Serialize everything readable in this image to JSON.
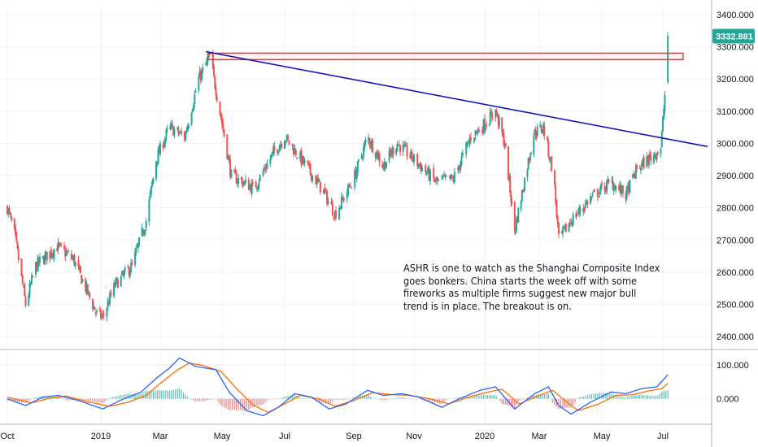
{
  "colors": {
    "up": "#26a69a",
    "down": "#ef5350",
    "grid": "#f0f3fa",
    "axis": "#e0e3eb",
    "trendline": "#1616b8",
    "resistance_box": "#e8382b",
    "macd": "#2962ff",
    "signal": "#ff6d00",
    "price_tag": "#26a69a"
  },
  "annotation": "ASHR is one to watch as the Shanghai Composite Index\ngoes bonkers. China starts the week off with some\nfireworks as multiple firms suggest new major bull\ntrend is in place. The breakout is on.",
  "chart_data": [
    {
      "type": "candlestick",
      "title": "",
      "x_tick_labels": [
        "Oct",
        "2019",
        "Mar",
        "May",
        "Jul",
        "Sep",
        "Nov",
        "2020",
        "Mar",
        "May",
        "Jul"
      ],
      "y_tick_labels": [
        "3400.000",
        "3300.000",
        "3200.000",
        "3100.000",
        "3000.000",
        "2900.000",
        "2800.000",
        "2700.000",
        "2600.000",
        "2500.000",
        "2400.000"
      ],
      "ylim": [
        2365,
        3430
      ],
      "last_price": "3332.881",
      "x_range": [
        "2018-10-01",
        "2020-07-31"
      ],
      "grid": true,
      "series_path": [
        [
          "2018-10-01",
          2800
        ],
        [
          "2018-10-08",
          2720
        ],
        [
          "2018-10-19",
          2500
        ],
        [
          "2018-10-29",
          2620
        ],
        [
          "2018-11-19",
          2680
        ],
        [
          "2018-12-05",
          2640
        ],
        [
          "2018-12-28",
          2470
        ],
        [
          "2019-01-03",
          2460
        ],
        [
          "2019-01-15",
          2560
        ],
        [
          "2019-02-01",
          2620
        ],
        [
          "2019-02-15",
          2760
        ],
        [
          "2019-02-25",
          2950
        ],
        [
          "2019-03-10",
          3050
        ],
        [
          "2019-03-25",
          3020
        ],
        [
          "2019-04-08",
          3200
        ],
        [
          "2019-04-19",
          3270
        ],
        [
          "2019-04-30",
          3080
        ],
        [
          "2019-05-10",
          2900
        ],
        [
          "2019-06-01",
          2860
        ],
        [
          "2019-06-20",
          2970
        ],
        [
          "2019-07-01",
          3020
        ],
        [
          "2019-07-20",
          2930
        ],
        [
          "2019-08-05",
          2850
        ],
        [
          "2019-08-15",
          2780
        ],
        [
          "2019-09-01",
          2890
        ],
        [
          "2019-09-15",
          3020
        ],
        [
          "2019-10-01",
          2930
        ],
        [
          "2019-10-15",
          3000
        ],
        [
          "2019-11-01",
          2950
        ],
        [
          "2019-11-20",
          2880
        ],
        [
          "2019-12-05",
          2890
        ],
        [
          "2019-12-20",
          3020
        ],
        [
          "2020-01-13",
          3100
        ],
        [
          "2020-01-23",
          3000
        ],
        [
          "2020-02-03",
          2730
        ],
        [
          "2020-02-24",
          3030
        ],
        [
          "2020-03-05",
          3050
        ],
        [
          "2020-03-15",
          2900
        ],
        [
          "2020-03-20",
          2700
        ],
        [
          "2020-04-01",
          2760
        ],
        [
          "2020-04-20",
          2830
        ],
        [
          "2020-05-10",
          2880
        ],
        [
          "2020-05-25",
          2840
        ],
        [
          "2020-06-05",
          2920
        ],
        [
          "2020-06-20",
          2960
        ],
        [
          "2020-06-29",
          2985
        ],
        [
          "2020-07-03",
          3150
        ],
        [
          "2020-07-06",
          3330
        ]
      ],
      "annotations": {
        "resistance_zone": {
          "y_low": 3260,
          "y_high": 3280,
          "x_start": "2019-04-01",
          "x_end": "2020-07-31"
        },
        "trendline": {
          "start": [
            "2019-04-15",
            3285
          ],
          "end": [
            "2020-07-31",
            2990
          ]
        }
      }
    },
    {
      "type": "line",
      "title": "",
      "y_tick_labels": [
        "100.000",
        "0.000"
      ],
      "ylim": [
        -70,
        140
      ],
      "series": [
        {
          "key": "macd",
          "points": [
            [
              "2018-10-01",
              0
            ],
            [
              "2018-10-19",
              -20
            ],
            [
              "2018-11-05",
              5
            ],
            [
              "2018-11-20",
              10
            ],
            [
              "2018-12-10",
              -5
            ],
            [
              "2019-01-03",
              -30
            ],
            [
              "2019-01-20",
              -5
            ],
            [
              "2019-02-10",
              20
            ],
            [
              "2019-02-25",
              60
            ],
            [
              "2019-03-10",
              90
            ],
            [
              "2019-03-20",
              120
            ],
            [
              "2019-04-05",
              95
            ],
            [
              "2019-04-25",
              85
            ],
            [
              "2019-05-08",
              20
            ],
            [
              "2019-05-25",
              -35
            ],
            [
              "2019-06-10",
              -50
            ],
            [
              "2019-06-25",
              -25
            ],
            [
              "2019-07-10",
              15
            ],
            [
              "2019-07-25",
              5
            ],
            [
              "2019-08-10",
              -30
            ],
            [
              "2019-08-25",
              -15
            ],
            [
              "2019-09-15",
              25
            ],
            [
              "2019-10-01",
              10
            ],
            [
              "2019-10-20",
              15
            ],
            [
              "2019-11-05",
              5
            ],
            [
              "2019-11-25",
              -25
            ],
            [
              "2019-12-10",
              0
            ],
            [
              "2019-12-28",
              25
            ],
            [
              "2020-01-13",
              35
            ],
            [
              "2020-02-03",
              -30
            ],
            [
              "2020-02-25",
              15
            ],
            [
              "2020-03-10",
              35
            ],
            [
              "2020-03-20",
              -20
            ],
            [
              "2020-04-01",
              -45
            ],
            [
              "2020-04-20",
              -10
            ],
            [
              "2020-05-10",
              20
            ],
            [
              "2020-05-25",
              15
            ],
            [
              "2020-06-10",
              30
            ],
            [
              "2020-06-25",
              35
            ],
            [
              "2020-07-06",
              70
            ]
          ]
        },
        {
          "key": "signal",
          "points": [
            [
              "2018-10-01",
              5
            ],
            [
              "2018-10-25",
              -12
            ],
            [
              "2018-11-12",
              2
            ],
            [
              "2018-11-28",
              8
            ],
            [
              "2018-12-18",
              -8
            ],
            [
              "2019-01-10",
              -22
            ],
            [
              "2019-01-28",
              -10
            ],
            [
              "2019-02-15",
              10
            ],
            [
              "2019-03-01",
              45
            ],
            [
              "2019-03-18",
              85
            ],
            [
              "2019-03-30",
              105
            ],
            [
              "2019-04-12",
              98
            ],
            [
              "2019-04-30",
              80
            ],
            [
              "2019-05-15",
              30
            ],
            [
              "2019-06-01",
              -20
            ],
            [
              "2019-06-15",
              -40
            ],
            [
              "2019-07-01",
              -15
            ],
            [
              "2019-07-15",
              10
            ],
            [
              "2019-08-01",
              0
            ],
            [
              "2019-08-15",
              -22
            ],
            [
              "2019-09-01",
              -5
            ],
            [
              "2019-09-20",
              18
            ],
            [
              "2019-10-10",
              12
            ],
            [
              "2019-10-28",
              10
            ],
            [
              "2019-11-15",
              0
            ],
            [
              "2019-12-01",
              -15
            ],
            [
              "2019-12-18",
              5
            ],
            [
              "2020-01-05",
              20
            ],
            [
              "2020-01-20",
              28
            ],
            [
              "2020-02-08",
              -15
            ],
            [
              "2020-03-01",
              10
            ],
            [
              "2020-03-14",
              25
            ],
            [
              "2020-03-28",
              -10
            ],
            [
              "2020-04-08",
              -35
            ],
            [
              "2020-04-28",
              -15
            ],
            [
              "2020-05-15",
              10
            ],
            [
              "2020-06-01",
              12
            ],
            [
              "2020-06-15",
              22
            ],
            [
              "2020-06-30",
              30
            ],
            [
              "2020-07-06",
              45
            ]
          ]
        }
      ],
      "histogram": "macd minus signal"
    }
  ]
}
